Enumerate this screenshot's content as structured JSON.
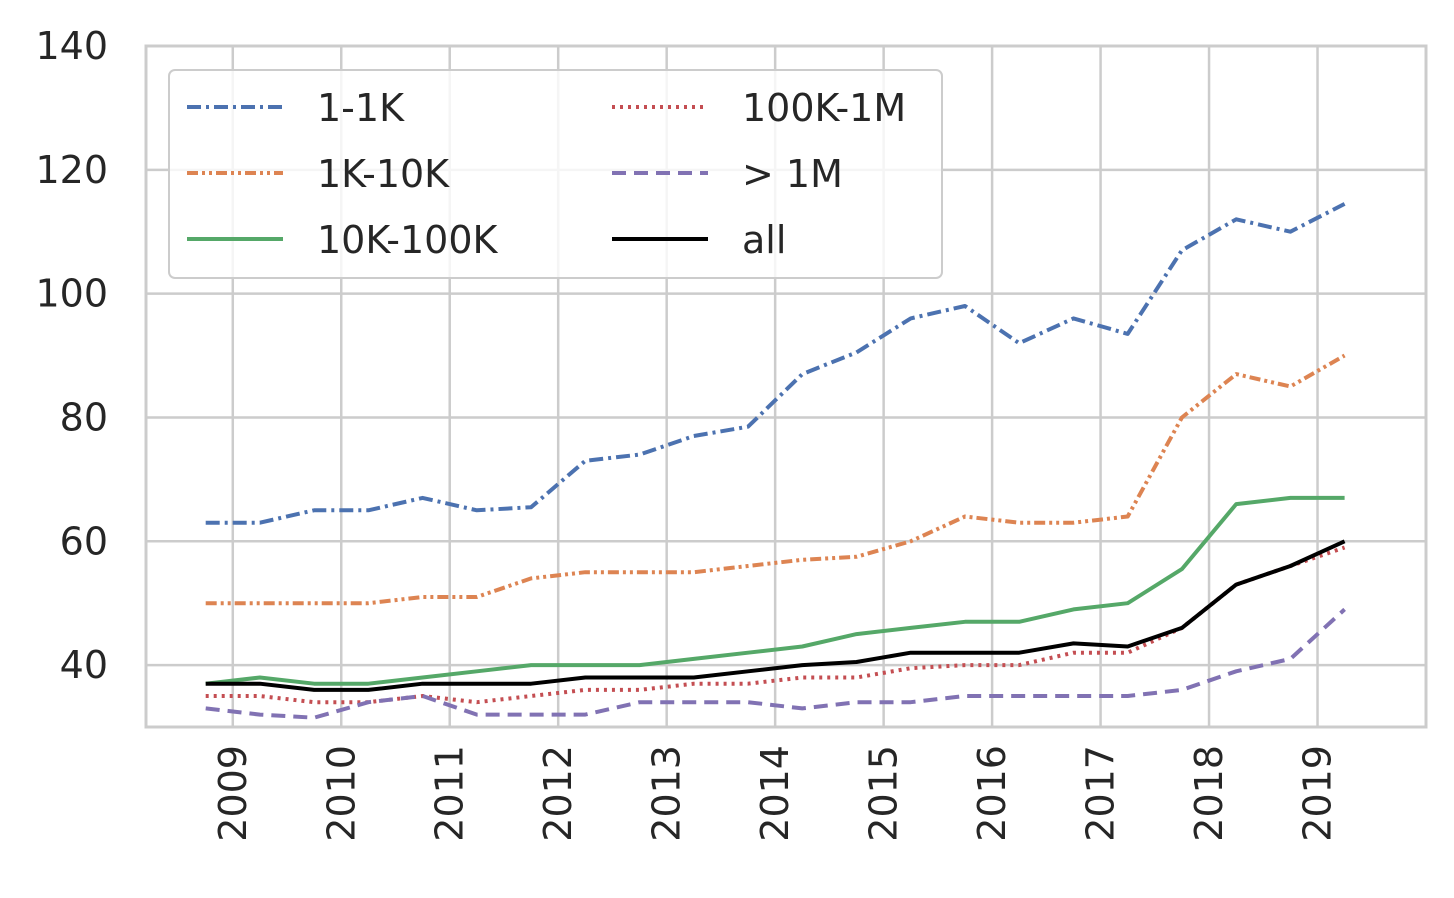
{
  "chart_data": {
    "type": "line",
    "title": "",
    "xlabel": "",
    "ylabel": "",
    "ylim": [
      30,
      140
    ],
    "xlim": [
      2008.2,
      2020.0
    ],
    "y_ticks": [
      "40",
      "60",
      "80",
      "100",
      "120",
      "140"
    ],
    "x_ticks": [
      "2009",
      "2010",
      "2011",
      "2012",
      "2013",
      "2014",
      "2015",
      "2016",
      "2017",
      "2018",
      "2019"
    ],
    "grid": true,
    "legend_position": "top-left",
    "x": [
      2008.75,
      2009.25,
      2009.75,
      2010.25,
      2010.75,
      2011.25,
      2011.75,
      2012.25,
      2012.75,
      2013.25,
      2013.75,
      2014.25,
      2014.75,
      2015.25,
      2015.75,
      2016.25,
      2016.75,
      2017.25,
      2017.75,
      2018.25,
      2018.75,
      2019.25
    ],
    "series": [
      {
        "name": "1-1K",
        "color": "#4c72b0",
        "dash": "dashdot",
        "values": [
          63,
          63,
          65,
          65,
          67,
          65,
          65.5,
          73,
          74,
          77,
          78.5,
          87,
          90.5,
          96,
          98,
          92,
          96,
          93.5,
          107,
          112,
          110,
          114.5
        ]
      },
      {
        "name": "100K-1M",
        "color": "#c44e52",
        "dash": "dotted",
        "values": [
          35,
          35,
          34,
          34,
          35,
          34,
          35,
          36,
          36,
          37,
          37,
          38,
          38,
          39.5,
          40,
          40,
          42,
          42,
          46,
          53,
          56,
          59
        ]
      },
      {
        "name": "1K-10K",
        "color": "#dd8452",
        "dash": "dashdotdot",
        "values": [
          50,
          50,
          50,
          50,
          51,
          51,
          54,
          55,
          55,
          55,
          56,
          57,
          57.5,
          60,
          64,
          63,
          63,
          64,
          80,
          87,
          85,
          90
        ]
      },
      {
        "name": "> 1M",
        "color": "#8172b3",
        "dash": "dashed",
        "values": [
          33,
          32,
          31.5,
          34,
          35,
          32,
          32,
          32,
          34,
          34,
          34,
          33,
          34,
          34,
          35,
          35,
          35,
          35,
          36,
          39,
          41,
          49
        ]
      },
      {
        "name": "10K-100K",
        "color": "#55a868",
        "dash": "solid",
        "values": [
          37,
          38,
          37,
          37,
          38,
          39,
          40,
          40,
          40,
          41,
          42,
          43,
          45,
          46,
          47,
          47,
          49,
          50,
          55.5,
          66,
          67,
          67
        ]
      },
      {
        "name": "all",
        "color": "#000000",
        "dash": "solid",
        "values": [
          37,
          37,
          36,
          36,
          37,
          37,
          37,
          38,
          38,
          38,
          39,
          40,
          40.5,
          42,
          42,
          42,
          43.5,
          43,
          46,
          53,
          56,
          60
        ]
      }
    ]
  }
}
